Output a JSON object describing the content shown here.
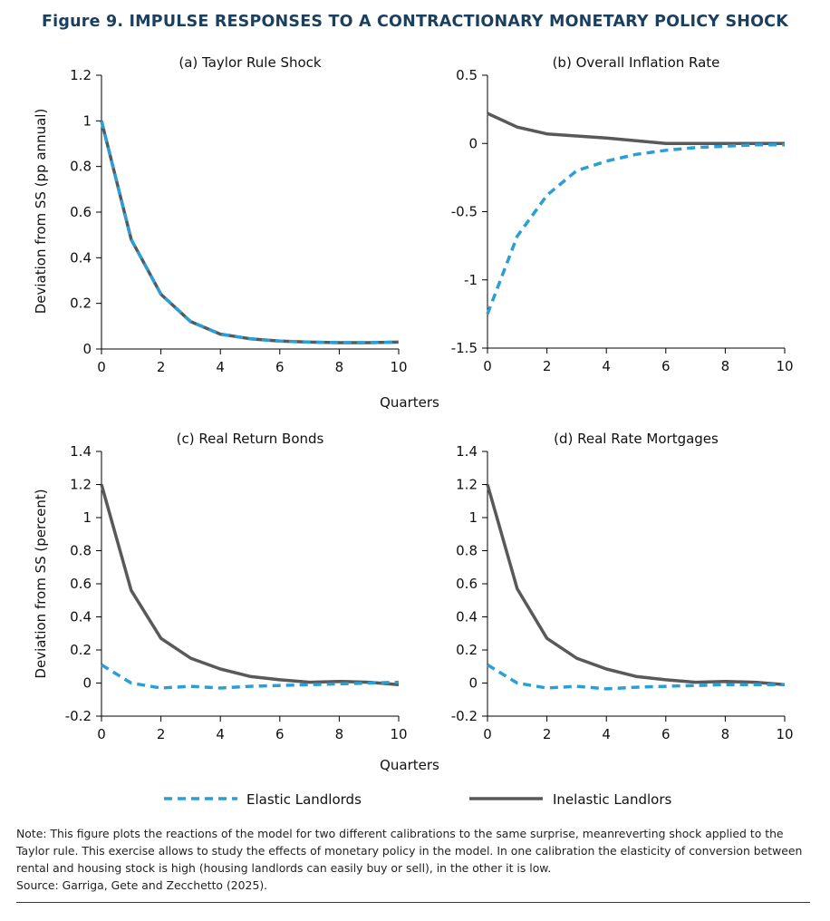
{
  "figure_title": "Figure 9. IMPULSE RESPONSES TO A CONTRACTIONARY MONETARY POLICY SHOCK",
  "colors": {
    "elastic": "#2a9fd6",
    "inelastic": "#58595b",
    "axis": "#000000",
    "title": "#1b3f5e"
  },
  "shared_labels": {
    "xlabel": "Quarters",
    "ylabel_top": "Deviation from SS (pp annual)",
    "ylabel_bottom": "Deviation from SS (percent)"
  },
  "legend": {
    "placement": "bottom-center",
    "items": [
      {
        "label": "Elastic Landlords",
        "style": "dashed"
      },
      {
        "label": "Inelastic Landlors",
        "style": "solid"
      }
    ]
  },
  "chart_data": [
    {
      "type": "line",
      "title": "(a) Taylor Rule Shock",
      "xlabel": "Quarters",
      "ylabel": "Deviation from SS (pp annual)",
      "x": [
        0,
        1,
        2,
        3,
        4,
        5,
        6,
        7,
        8,
        9,
        10
      ],
      "xlim": [
        0,
        10
      ],
      "xticks": [
        "0",
        "2",
        "4",
        "6",
        "8",
        "10"
      ],
      "ylim": [
        0,
        1.2
      ],
      "yticks": [
        "0",
        "0.2",
        "0.4",
        "0.6",
        "0.8",
        "1",
        "1.2"
      ],
      "grid": false,
      "series": [
        {
          "name": "Elastic Landlords",
          "values": [
            1.0,
            0.48,
            0.24,
            0.12,
            0.065,
            0.045,
            0.035,
            0.03,
            0.028,
            0.028,
            0.03
          ]
        },
        {
          "name": "Inelastic Landlors",
          "values": [
            1.0,
            0.48,
            0.24,
            0.12,
            0.065,
            0.045,
            0.035,
            0.03,
            0.028,
            0.028,
            0.03
          ]
        }
      ]
    },
    {
      "type": "line",
      "title": "(b) Overall Inflation Rate",
      "xlabel": "Quarters",
      "ylabel": "",
      "x": [
        0,
        1,
        2,
        3,
        4,
        5,
        6,
        7,
        8,
        9,
        10
      ],
      "xlim": [
        0,
        10
      ],
      "xticks": [
        "0",
        "2",
        "4",
        "6",
        "8",
        "10"
      ],
      "ylim": [
        -1.5,
        0.5
      ],
      "yticks": [
        "-1.5",
        "-1",
        "-0.5",
        "0",
        "0.5"
      ],
      "grid": false,
      "series": [
        {
          "name": "Elastic Landlords",
          "values": [
            -1.25,
            -0.68,
            -0.38,
            -0.2,
            -0.13,
            -0.08,
            -0.05,
            -0.03,
            -0.02,
            -0.01,
            -0.01
          ]
        },
        {
          "name": "Inelastic Landlors",
          "values": [
            0.22,
            0.12,
            0.07,
            0.055,
            0.04,
            0.02,
            0.0,
            0.0,
            0.0,
            0.0,
            0.0
          ]
        }
      ]
    },
    {
      "type": "line",
      "title": "(c) Real Return Bonds",
      "xlabel": "Quarters",
      "ylabel": "Deviation from SS (percent)",
      "x": [
        0,
        1,
        2,
        3,
        4,
        5,
        6,
        7,
        8,
        9,
        10
      ],
      "xlim": [
        0,
        10
      ],
      "xticks": [
        "0",
        "2",
        "4",
        "6",
        "8",
        "10"
      ],
      "ylim": [
        -0.2,
        1.4
      ],
      "yticks": [
        "-0.2",
        "0",
        "0.2",
        "0.4",
        "0.6",
        "0.8",
        "1",
        "1.2",
        "1.4"
      ],
      "grid": false,
      "series": [
        {
          "name": "Elastic Landlords",
          "values": [
            0.11,
            0.0,
            -0.03,
            -0.02,
            -0.03,
            -0.02,
            -0.015,
            -0.01,
            -0.005,
            0.0,
            0.005
          ]
        },
        {
          "name": "Inelastic Landlors",
          "values": [
            1.2,
            0.56,
            0.27,
            0.15,
            0.085,
            0.04,
            0.02,
            0.005,
            0.01,
            0.005,
            -0.01
          ]
        }
      ]
    },
    {
      "type": "line",
      "title": "(d) Real Rate Mortgages",
      "xlabel": "Quarters",
      "ylabel": "",
      "x": [
        0,
        1,
        2,
        3,
        4,
        5,
        6,
        7,
        8,
        9,
        10
      ],
      "xlim": [
        0,
        10
      ],
      "xticks": [
        "0",
        "2",
        "4",
        "6",
        "8",
        "10"
      ],
      "ylim": [
        -0.2,
        1.4
      ],
      "yticks": [
        "-0.2",
        "0",
        "0.2",
        "0.4",
        "0.6",
        "0.8",
        "1",
        "1.2",
        "1.4"
      ],
      "grid": false,
      "series": [
        {
          "name": "Elastic Landlords",
          "values": [
            0.11,
            0.0,
            -0.03,
            -0.02,
            -0.035,
            -0.025,
            -0.02,
            -0.015,
            -0.01,
            -0.01,
            -0.01
          ]
        },
        {
          "name": "Inelastic Landlors",
          "values": [
            1.2,
            0.57,
            0.27,
            0.15,
            0.085,
            0.04,
            0.02,
            0.005,
            0.01,
            0.005,
            -0.01
          ]
        }
      ]
    }
  ],
  "note": "Note: This figure plots the reactions of the model for two different calibrations to the same surprise, meanreverting shock applied to the Taylor rule. This exercise allows to study the effects of monetary policy in the model. In one calibration the elasticity of conversion between rental and housing stock is high (housing landlords can easily buy or sell), in the other it is low.",
  "source": "Source: Garriga, Gete and Zecchetto (2025)."
}
